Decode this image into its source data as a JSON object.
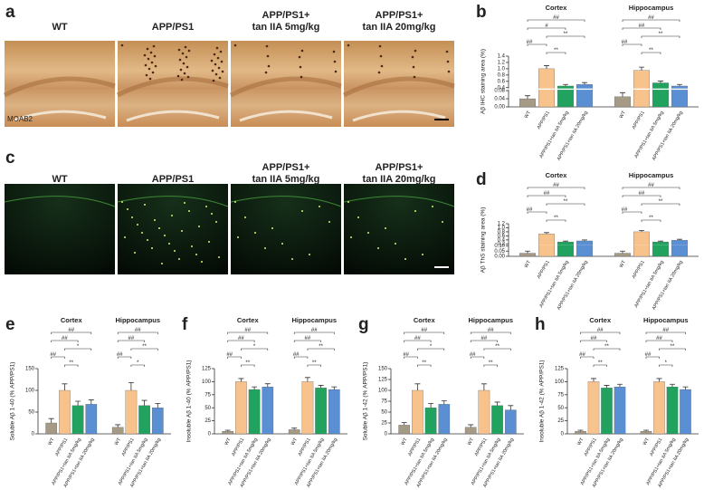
{
  "panel_a": {
    "label": "a",
    "stain": "MOAB2",
    "images": [
      [
        "WT"
      ],
      [
        "APP/PS1"
      ],
      [
        "APP/PS1+",
        "tan IIA 5mg/kg"
      ],
      [
        "APP/PS1+",
        "tan IIA 20mg/kg"
      ]
    ]
  },
  "panel_c": {
    "label": "c",
    "images": [
      [
        "WT"
      ],
      [
        "APP/PS1"
      ],
      [
        "APP/PS1+",
        "tan IIA 5mg/kg"
      ],
      [
        "APP/PS1+",
        "tan IIA 20mg/kg"
      ]
    ]
  },
  "chart_data": [
    {
      "type": "bar",
      "panel": "b",
      "ylabel": "Aβ IHC staining area (%)",
      "categories": [
        "WT",
        "APP/PS1",
        "APP/PS1+tan IIA 5mg/kg",
        "APP/PS1+tan IIA 20mg/kg"
      ],
      "colors": [
        "#a59a86",
        "#f8c28c",
        "#21a35f",
        "#5b8fd3"
      ],
      "series": [
        {
          "name": "Cortex",
          "values": [
            0.04,
            1.0,
            0.45,
            0.5
          ],
          "errors": [
            0.015,
            0.1,
            0.05,
            0.06
          ],
          "significance": [
            {
              "text": "##",
              "pair": [
                0,
                3
              ]
            },
            {
              "text": "#",
              "pair": [
                0,
                2
              ]
            },
            {
              "text": "**",
              "pair": [
                1,
                3
              ]
            },
            {
              "text": "##",
              "pair": [
                0,
                1
              ]
            },
            {
              "text": "**",
              "pair": [
                1,
                2
              ]
            }
          ]
        },
        {
          "name": "Hippocampus",
          "values": [
            0.05,
            0.95,
            0.55,
            0.45
          ],
          "errors": [
            0.02,
            0.1,
            0.06,
            0.05
          ],
          "significance": [
            {
              "text": "##",
              "pair": [
                0,
                3
              ]
            },
            {
              "text": "##",
              "pair": [
                0,
                2
              ]
            },
            {
              "text": "**",
              "pair": [
                1,
                3
              ]
            },
            {
              "text": "##",
              "pair": [
                0,
                1
              ]
            },
            {
              "text": "**",
              "pair": [
                1,
                2
              ]
            }
          ]
        }
      ],
      "ylim": [
        0,
        1.4
      ],
      "ybreak": [
        0.08,
        0.4
      ],
      "yticks": [
        {
          "value": 0,
          "label": "0.00"
        },
        0.04,
        0.08,
        0.4,
        0.6,
        0.8,
        {
          "value": 1,
          "label": "1.0"
        },
        1.2,
        1.4
      ]
    },
    {
      "type": "bar",
      "panel": "d",
      "ylabel": "Aβ  ThS staining area (%)",
      "categories": [
        "WT",
        "APP/PS1",
        "APP/PS1+tan IIA 5mg/kg",
        "APP/PS1+tan IIA 20mg/kg"
      ],
      "colors": [
        "#a59a86",
        "#f8c28c",
        "#21a35f",
        "#5b8fd3"
      ],
      "series": [
        {
          "name": "Cortex",
          "values": [
            0.03,
            0.7,
            0.3,
            0.35
          ],
          "errors": [
            0.02,
            0.06,
            0.04,
            0.05
          ],
          "significance": [
            {
              "text": "##",
              "pair": [
                0,
                3
              ]
            },
            {
              "text": "##",
              "pair": [
                0,
                2
              ]
            },
            {
              "text": "**",
              "pair": [
                1,
                3
              ]
            },
            {
              "text": "##",
              "pair": [
                0,
                1
              ]
            },
            {
              "text": "**",
              "pair": [
                1,
                2
              ]
            }
          ]
        },
        {
          "name": "Hippocampus",
          "values": [
            0.03,
            0.8,
            0.3,
            0.38
          ],
          "errors": [
            0.02,
            0.07,
            0.04,
            0.05
          ],
          "significance": [
            {
              "text": "##",
              "pair": [
                0,
                3
              ]
            },
            {
              "text": "##",
              "pair": [
                0,
                2
              ]
            },
            {
              "text": "**",
              "pair": [
                1,
                3
              ]
            },
            {
              "text": "##",
              "pair": [
                0,
                1
              ]
            },
            {
              "text": "**",
              "pair": [
                1,
                2
              ]
            }
          ]
        }
      ],
      "ylim": [
        0,
        1.2
      ],
      "ybreak": [
        0.1,
        0.2
      ],
      "yticks": [
        {
          "value": 0,
          "label": "0.00"
        },
        0.05,
        {
          "value": 0.1,
          "label": "0.10"
        },
        0.2,
        0.4,
        0.6,
        0.8,
        {
          "value": 1,
          "label": "1.0"
        },
        1.2
      ]
    },
    {
      "type": "bar",
      "panel": "e",
      "ylabel": "Soluble Aβ 1-40 (% APP/PS1)",
      "categories": [
        "WT",
        "APP/PS1",
        "APP/PS1+tan IIA 5mg/kg",
        "APP/PS1+tan IIA 20mg/kg"
      ],
      "colors": [
        "#a59a86",
        "#f8c28c",
        "#21a35f",
        "#5b8fd3"
      ],
      "series": [
        {
          "name": "Cortex",
          "values": [
            25,
            100,
            65,
            68
          ],
          "errors": [
            10,
            15,
            10,
            10
          ],
          "significance": [
            {
              "text": "##",
              "pair": [
                0,
                3
              ]
            },
            {
              "text": "##",
              "pair": [
                0,
                2
              ]
            },
            {
              "text": "*",
              "pair": [
                1,
                3
              ]
            },
            {
              "text": "##",
              "pair": [
                0,
                1
              ]
            },
            {
              "text": "**",
              "pair": [
                1,
                2
              ]
            }
          ]
        },
        {
          "name": "Hippocampus",
          "values": [
            15,
            100,
            65,
            60
          ],
          "errors": [
            6,
            18,
            12,
            10
          ],
          "significance": [
            {
              "text": "##",
              "pair": [
                0,
                3
              ]
            },
            {
              "text": "##",
              "pair": [
                0,
                2
              ]
            },
            {
              "text": "**",
              "pair": [
                1,
                3
              ]
            },
            {
              "text": "##",
              "pair": [
                0,
                1
              ]
            },
            {
              "text": "*",
              "pair": [
                1,
                2
              ]
            }
          ]
        }
      ],
      "ylim": [
        0,
        150
      ],
      "yticks": [
        0,
        50,
        100,
        150
      ]
    },
    {
      "type": "bar",
      "panel": "f",
      "ylabel": "Insoluble Aβ 1-40 (% APP/PS1)",
      "categories": [
        "WT",
        "APP/PS1",
        "APP/PS1+tan IIA 5mg/kg",
        "APP/PS1+tan IIA 20mg/kg"
      ],
      "colors": [
        "#a59a86",
        "#f8c28c",
        "#21a35f",
        "#5b8fd3"
      ],
      "series": [
        {
          "name": "Cortex",
          "values": [
            5,
            100,
            85,
            90
          ],
          "errors": [
            2,
            6,
            5,
            6
          ],
          "significance": [
            {
              "text": "##",
              "pair": [
                0,
                3
              ]
            },
            {
              "text": "##",
              "pair": [
                0,
                2
              ]
            },
            {
              "text": "*",
              "pair": [
                1,
                3
              ]
            },
            {
              "text": "##",
              "pair": [
                0,
                1
              ]
            },
            {
              "text": "**",
              "pair": [
                1,
                2
              ]
            }
          ]
        },
        {
          "name": "Hippocampus",
          "values": [
            8,
            100,
            88,
            85
          ],
          "errors": [
            3,
            8,
            5,
            5
          ],
          "significance": [
            {
              "text": "##",
              "pair": [
                0,
                3
              ]
            },
            {
              "text": "##",
              "pair": [
                0,
                2
              ]
            },
            {
              "text": "**",
              "pair": [
                1,
                3
              ]
            },
            {
              "text": "##",
              "pair": [
                0,
                1
              ]
            },
            {
              "text": "**",
              "pair": [
                1,
                2
              ]
            }
          ]
        }
      ],
      "ylim": [
        0,
        125
      ],
      "yticks": [
        0,
        25,
        50,
        75,
        100,
        125
      ]
    },
    {
      "type": "bar",
      "panel": "g",
      "ylabel": "Soluble Aβ 1-42 (% APP/PS1)",
      "categories": [
        "WT",
        "APP/PS1",
        "APP/PS1+tan IIA 5mg/kg",
        "APP/PS1+tan IIA 20mg/kg"
      ],
      "colors": [
        "#a59a86",
        "#f8c28c",
        "#21a35f",
        "#5b8fd3"
      ],
      "series": [
        {
          "name": "Cortex",
          "values": [
            20,
            100,
            60,
            68
          ],
          "errors": [
            6,
            15,
            10,
            8
          ],
          "significance": [
            {
              "text": "##",
              "pair": [
                0,
                3
              ]
            },
            {
              "text": "##",
              "pair": [
                0,
                2
              ]
            },
            {
              "text": "*",
              "pair": [
                1,
                3
              ]
            },
            {
              "text": "##",
              "pair": [
                0,
                1
              ]
            },
            {
              "text": "**",
              "pair": [
                1,
                2
              ]
            }
          ]
        },
        {
          "name": "Hippocampus",
          "values": [
            15,
            100,
            65,
            55
          ],
          "errors": [
            6,
            15,
            8,
            10
          ],
          "significance": [
            {
              "text": "##",
              "pair": [
                0,
                3
              ]
            },
            {
              "text": "##",
              "pair": [
                0,
                2
              ]
            },
            {
              "text": "**",
              "pair": [
                1,
                3
              ]
            },
            {
              "text": "##",
              "pair": [
                0,
                1
              ]
            },
            {
              "text": "**",
              "pair": [
                1,
                2
              ]
            }
          ]
        }
      ],
      "ylim": [
        0,
        150
      ],
      "yticks": [
        0,
        25,
        50,
        75,
        100,
        125,
        150
      ]
    },
    {
      "type": "bar",
      "panel": "h",
      "ylabel": "Insoluble Aβ 1-42 (% APP/PS1)",
      "categories": [
        "WT",
        "APP/PS1",
        "APP/PS1+tan IIA 5mg/kg",
        "APP/PS1+tan IIA 20mg/kg"
      ],
      "colors": [
        "#a59a86",
        "#f8c28c",
        "#21a35f",
        "#5b8fd3"
      ],
      "series": [
        {
          "name": "Cortex",
          "values": [
            5,
            100,
            88,
            90
          ],
          "errors": [
            2,
            6,
            5,
            5
          ],
          "significance": [
            {
              "text": "##",
              "pair": [
                0,
                3
              ]
            },
            {
              "text": "##",
              "pair": [
                0,
                2
              ]
            },
            {
              "text": "**",
              "pair": [
                1,
                3
              ]
            },
            {
              "text": "##",
              "pair": [
                0,
                1
              ]
            },
            {
              "text": "**",
              "pair": [
                1,
                2
              ]
            }
          ]
        },
        {
          "name": "Hippocampus",
          "values": [
            5,
            100,
            90,
            85
          ],
          "errors": [
            2,
            6,
            5,
            5
          ],
          "significance": [
            {
              "text": "##",
              "pair": [
                0,
                3
              ]
            },
            {
              "text": "##",
              "pair": [
                0,
                2
              ]
            },
            {
              "text": "**",
              "pair": [
                1,
                3
              ]
            },
            {
              "text": "##",
              "pair": [
                0,
                1
              ]
            },
            {
              "text": "*",
              "pair": [
                1,
                2
              ]
            }
          ]
        }
      ],
      "ylim": [
        0,
        125
      ],
      "yticks": [
        0,
        25,
        50,
        75,
        100,
        125
      ]
    }
  ]
}
